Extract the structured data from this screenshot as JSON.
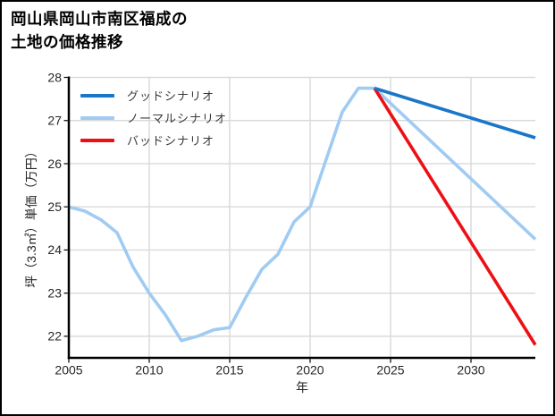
{
  "header": {
    "title_line1": "岡山県岡山市南区福成の",
    "title_line2": "土地の価格推移"
  },
  "chart_data": {
    "type": "line",
    "title": "岡山県岡山市南区福成の土地の価格推移",
    "xlabel": "年",
    "ylabel": "坪（3.3㎡）単価（万円）",
    "xlim": [
      2005,
      2034
    ],
    "ylim": [
      21.5,
      28
    ],
    "xticks": [
      2005,
      2010,
      2015,
      2020,
      2025,
      2030
    ],
    "yticks": [
      22,
      23,
      24,
      25,
      26,
      27,
      28
    ],
    "grid": true,
    "legend_position": "upper-left",
    "colors": {
      "background": "#ffffff",
      "grid": "#d9d9d9",
      "axis": "#000000",
      "tick_label": "#262626",
      "legend_text": "#3a3a3a"
    },
    "series": [
      {
        "name": "グッドシナリオ",
        "color": "#1a76c8",
        "x": [
          2024,
          2034
        ],
        "y": [
          27.75,
          26.6
        ]
      },
      {
        "name": "ノーマルシナリオ",
        "color": "#a0cbf2",
        "x": [
          2005,
          2006,
          2007,
          2008,
          2009,
          2010,
          2011,
          2012,
          2013,
          2014,
          2015,
          2016,
          2017,
          2018,
          2019,
          2020,
          2021,
          2022,
          2023,
          2024,
          2034
        ],
        "y": [
          25.0,
          24.9,
          24.7,
          24.4,
          23.6,
          23.0,
          22.5,
          21.9,
          22.0,
          22.15,
          22.2,
          22.9,
          23.55,
          23.9,
          24.65,
          25.0,
          26.1,
          27.2,
          27.75,
          27.75,
          24.25
        ]
      },
      {
        "name": "バッドシナリオ",
        "color": "#ed0f14",
        "x": [
          2024,
          2034
        ],
        "y": [
          27.75,
          21.8
        ]
      }
    ]
  }
}
